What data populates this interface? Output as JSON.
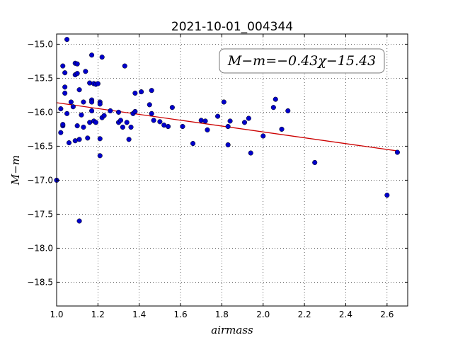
{
  "chart_data": {
    "type": "scatter",
    "title": "2021-10-01_004344",
    "xlabel": "airmass",
    "ylabel": "M−m",
    "xlim": [
      1.0,
      2.7
    ],
    "ylim": [
      -18.85,
      -14.85
    ],
    "y_inverted": true,
    "grid": true,
    "xticks": [
      1.0,
      1.2,
      1.4,
      1.6,
      1.8,
      2.0,
      2.2,
      2.4,
      2.6
    ],
    "xtick_labels": [
      "1.0",
      "1.2",
      "1.4",
      "1.6",
      "1.8",
      "2.0",
      "2.2",
      "2.4",
      "2.6"
    ],
    "yticks": [
      -15.0,
      -15.5,
      -16.0,
      -16.5,
      -17.0,
      -17.5,
      -18.0,
      -18.5
    ],
    "ytick_labels": [
      "−15.0",
      "−15.5",
      "−16.0",
      "−16.5",
      "−17.0",
      "−17.5",
      "−18.0",
      "−18.5"
    ],
    "annotation": "M−m=−0.43χ−15.43",
    "point_color": "#0000cc",
    "fit_color": "#cc0000",
    "fit": {
      "slope": -0.43,
      "intercept": -15.43,
      "x_range": [
        1.0,
        2.65
      ]
    },
    "points": [
      [
        1.0,
        -17.0
      ],
      [
        1.02,
        -15.95
      ],
      [
        1.02,
        -16.3
      ],
      [
        1.03,
        -16.2
      ],
      [
        1.03,
        -16.18
      ],
      [
        1.03,
        -15.32
      ],
      [
        1.04,
        -15.42
      ],
      [
        1.04,
        -15.72
      ],
      [
        1.04,
        -15.63
      ],
      [
        1.05,
        -14.93
      ],
      [
        1.05,
        -16.02
      ],
      [
        1.06,
        -16.45
      ],
      [
        1.07,
        -15.85
      ],
      [
        1.08,
        -15.92
      ],
      [
        1.09,
        -15.45
      ],
      [
        1.09,
        -15.28
      ],
      [
        1.09,
        -16.42
      ],
      [
        1.1,
        -15.43
      ],
      [
        1.1,
        -16.2
      ],
      [
        1.1,
        -15.29
      ],
      [
        1.11,
        -16.4
      ],
      [
        1.11,
        -17.6
      ],
      [
        1.11,
        -15.67
      ],
      [
        1.12,
        -16.04
      ],
      [
        1.13,
        -15.85
      ],
      [
        1.13,
        -16.22
      ],
      [
        1.14,
        -15.4
      ],
      [
        1.15,
        -16.38
      ],
      [
        1.16,
        -15.57
      ],
      [
        1.16,
        -16.15
      ],
      [
        1.17,
        -15.98
      ],
      [
        1.17,
        -15.82
      ],
      [
        1.17,
        -15.85
      ],
      [
        1.17,
        -15.16
      ],
      [
        1.18,
        -16.13
      ],
      [
        1.18,
        -15.58
      ],
      [
        1.19,
        -16.15
      ],
      [
        1.19,
        -15.59
      ],
      [
        1.2,
        -15.58
      ],
      [
        1.21,
        -15.85
      ],
      [
        1.21,
        -15.88
      ],
      [
        1.21,
        -16.64
      ],
      [
        1.21,
        -16.39
      ],
      [
        1.22,
        -16.08
      ],
      [
        1.22,
        -15.19
      ],
      [
        1.23,
        -16.05
      ],
      [
        1.26,
        -15.98
      ],
      [
        1.3,
        -16.15
      ],
      [
        1.3,
        -16.0
      ],
      [
        1.31,
        -16.12
      ],
      [
        1.32,
        -16.22
      ],
      [
        1.33,
        -15.32
      ],
      [
        1.34,
        -16.15
      ],
      [
        1.35,
        -16.4
      ],
      [
        1.36,
        -16.22
      ],
      [
        1.37,
        -16.02
      ],
      [
        1.38,
        -15.72
      ],
      [
        1.38,
        -15.99
      ],
      [
        1.41,
        -15.7
      ],
      [
        1.45,
        -15.89
      ],
      [
        1.46,
        -15.68
      ],
      [
        1.46,
        -16.02
      ],
      [
        1.47,
        -16.12
      ],
      [
        1.5,
        -16.14
      ],
      [
        1.52,
        -16.19
      ],
      [
        1.54,
        -16.21
      ],
      [
        1.56,
        -15.93
      ],
      [
        1.61,
        -16.21
      ],
      [
        1.66,
        -16.46
      ],
      [
        1.7,
        -16.12
      ],
      [
        1.72,
        -16.13
      ],
      [
        1.73,
        -16.26
      ],
      [
        1.78,
        -16.06
      ],
      [
        1.81,
        -15.85
      ],
      [
        1.83,
        -16.21
      ],
      [
        1.83,
        -16.48
      ],
      [
        1.84,
        -16.13
      ],
      [
        1.91,
        -16.15
      ],
      [
        1.93,
        -16.09
      ],
      [
        1.94,
        -16.6
      ],
      [
        2.0,
        -16.35
      ],
      [
        2.05,
        -15.93
      ],
      [
        2.06,
        -15.81
      ],
      [
        2.09,
        -16.25
      ],
      [
        2.12,
        -15.98
      ],
      [
        2.25,
        -16.74
      ],
      [
        2.6,
        -17.22
      ],
      [
        2.65,
        -16.59
      ]
    ]
  }
}
